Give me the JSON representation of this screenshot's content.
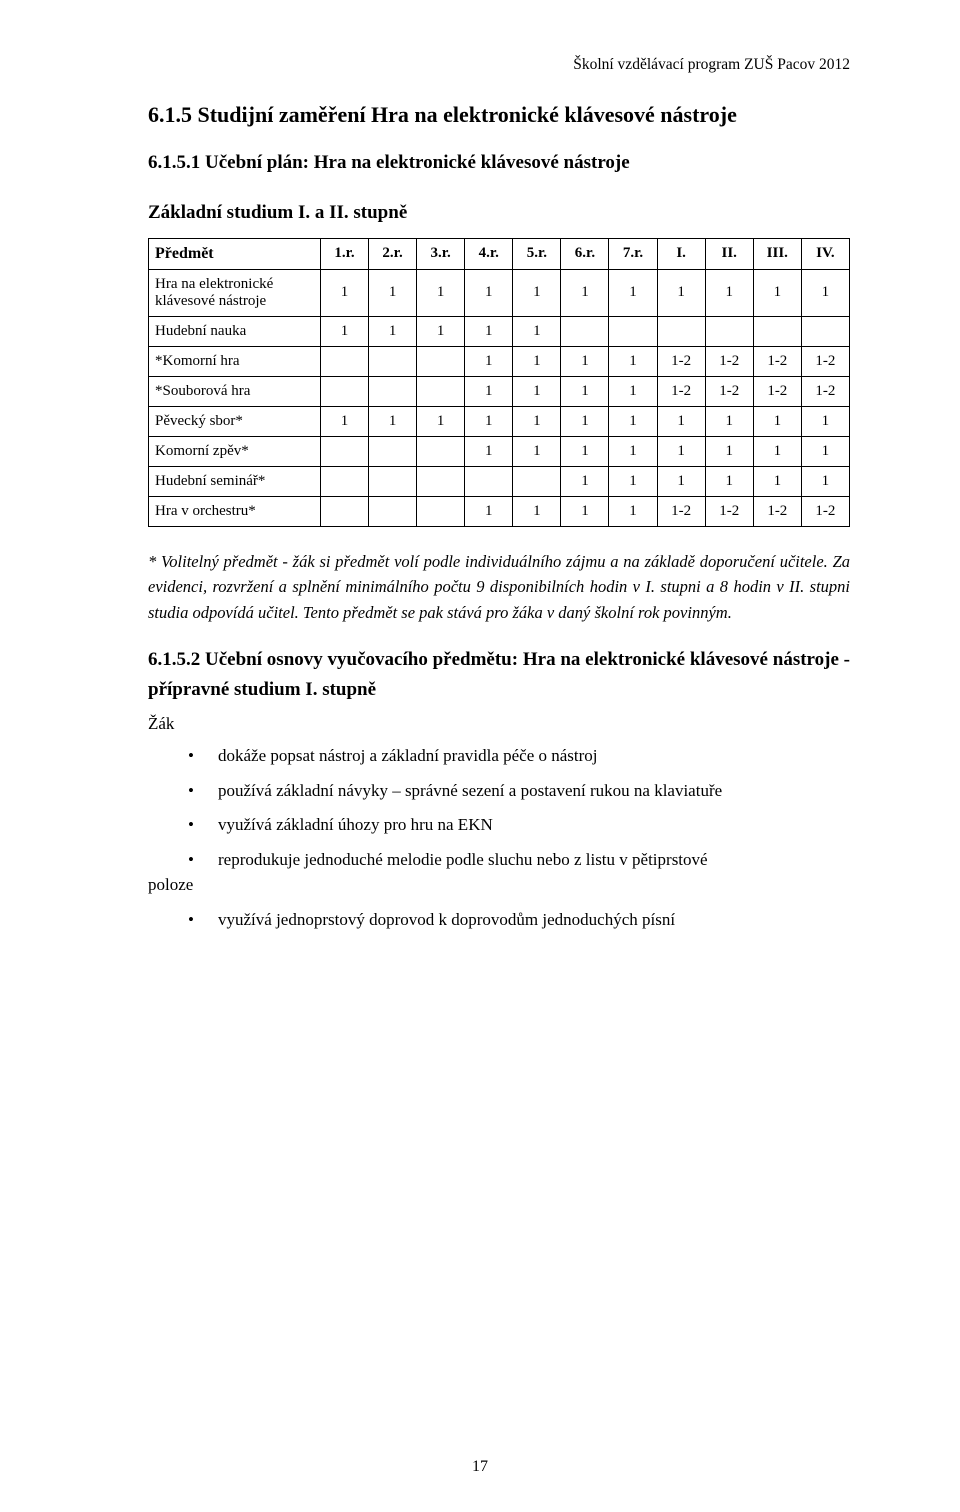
{
  "header": {
    "running": "Školní vzdělávací program ZUŠ Pacov 2012"
  },
  "section": {
    "number_title": "6.1.5  Studijní zaměření Hra na elektronické klávesové nástroje",
    "sub1": "6.1.5.1   Učební plán: Hra na elektronické klávesové nástroje",
    "basic_line": "Základní studium I. a II. stupně"
  },
  "table": {
    "col_headers": [
      "Předmět",
      "1.r.",
      "2.r.",
      "3.r.",
      "4.r.",
      "5.r.",
      "6.r.",
      "7.r.",
      "I.",
      "II.",
      "III.",
      "IV."
    ],
    "rows": [
      {
        "label": "Hra na elektronické klávesové nástroje",
        "cells": [
          "1",
          "1",
          "1",
          "1",
          "1",
          "1",
          "1",
          "1",
          "1",
          "1",
          "1"
        ]
      },
      {
        "label": "Hudební nauka",
        "cells": [
          "1",
          "1",
          "1",
          "1",
          "1",
          "",
          "",
          "",
          "",
          "",
          ""
        ]
      },
      {
        "label": "*Komorní hra",
        "cells": [
          "",
          "",
          "",
          "1",
          "1",
          "1",
          "1",
          "1-2",
          "1-2",
          "1-2",
          "1-2"
        ]
      },
      {
        "label": "*Souborová hra",
        "cells": [
          "",
          "",
          "",
          "1",
          "1",
          "1",
          "1",
          "1-2",
          "1-2",
          "1-2",
          "1-2"
        ]
      },
      {
        "label": "Pěvecký sbor*",
        "cells": [
          "1",
          "1",
          "1",
          "1",
          "1",
          "1",
          "1",
          "1",
          "1",
          "1",
          "1"
        ]
      },
      {
        "label": "Komorní zpěv*",
        "cells": [
          "",
          "",
          "",
          "1",
          "1",
          "1",
          "1",
          "1",
          "1",
          "1",
          "1"
        ]
      },
      {
        "label": "Hudební seminář*",
        "cells": [
          "",
          "",
          "",
          "",
          "",
          "1",
          "1",
          "1",
          "1",
          "1",
          "1"
        ]
      },
      {
        "label": "Hra v orchestru*",
        "cells": [
          "",
          "",
          "",
          "1",
          "1",
          "1",
          "1",
          "1-2",
          "1-2",
          "1-2",
          "1-2"
        ]
      }
    ]
  },
  "italic_note": "* Volitelný předmět - žák si předmět volí podle individuálního zájmu a na základě doporučení učitele. Za evidenci, rozvržení a splnění minimálního počtu 9 disponibilních hodin v I. stupni a 8 hodin v II. stupni studia odpovídá učitel. Tento předmět se pak stává pro žáka v daný školní rok povinným.",
  "subsection2": "6.1.5.2 Učební osnovy vyučovacího předmětu: Hra na elektronické klávesové nástroje - přípravné studium I. stupně",
  "zak_label": "Žák",
  "bullets": [
    "dokáže popsat nástroj a základní pravidla péče o nástroj",
    "používá základní návyky – správné sezení a postavení rukou na klaviatuře",
    "využívá základní úhozy pro hru na EKN",
    "reprodukuje jednoduché melodie podle sluchu nebo z listu v pětiprstové",
    "využívá jednoprstový doprovod k doprovodům jednoduchých písní"
  ],
  "bullet4_tail": "poloze",
  "page_number": "17"
}
